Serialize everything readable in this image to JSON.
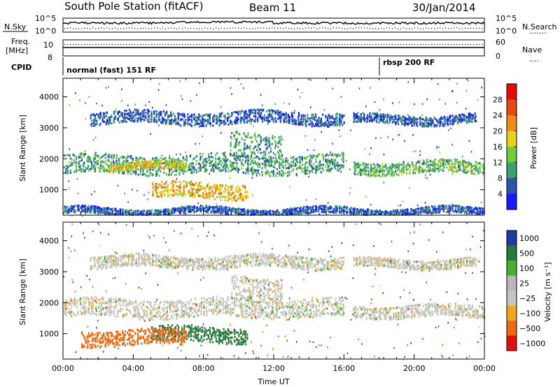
{
  "header": {
    "station": "South Pole Station (fitACF)",
    "beam": "Beam 11",
    "date": "30/Jan/2014"
  },
  "colors": {
    "power": [
      "#1a1aff",
      "#2a55a8",
      "#3aa070",
      "#6fcc3a",
      "#e5d21c",
      "#f08a18",
      "#e44a14",
      "#e60b0b"
    ],
    "velocity": [
      "#1f3aa0",
      "#28783c",
      "#48b030",
      "#b8b8b8",
      "#c8c4be",
      "#f0a820",
      "#ec6a12",
      "#e01010"
    ],
    "ground": "#c8c4be"
  },
  "top_panels": {
    "nsky": {
      "label": "N.Sky",
      "left_ticks": [
        "10^5",
        "10^0"
      ],
      "right_ticks": [
        "10^5",
        "10^0"
      ],
      "right_label": "N.Search",
      "right_marker": "......."
    },
    "freq": {
      "label_line1": "Freq.",
      "label_line2": "[MHz]",
      "left_ticks": [
        "10",
        "8"
      ],
      "right_ticks": [
        "60",
        "0"
      ],
      "right_label": "Nave",
      "right_marker": "...."
    },
    "cpid": {
      "label": "CPID",
      "modes": [
        {
          "text": "normal (fast) 151 RF",
          "start_hour": 0
        },
        {
          "text": "rbsp 200 RF",
          "start_hour": 18
        }
      ]
    }
  },
  "chart_data": [
    {
      "type": "heatmap",
      "title": "",
      "ylabel": "Slant Range [km]",
      "xlabel": "",
      "x_range_hours": [
        0,
        24
      ],
      "y_range_km": [
        180,
        4600
      ],
      "yticks": [
        "1000",
        "2000",
        "3000",
        "4000"
      ],
      "colorbar": {
        "label": "Power [dB]",
        "ticks": [
          "4",
          "8",
          "12",
          "16",
          "20",
          "24",
          "28"
        ],
        "range": [
          0,
          32
        ]
      },
      "echo_bands": [
        {
          "start_hour": 0,
          "end_hour": 16,
          "range_km": [
            1500,
            2100
          ],
          "level_db": 10
        },
        {
          "start_hour": 16.5,
          "end_hour": 24,
          "range_km": [
            1500,
            1900
          ],
          "level_db": 12
        },
        {
          "start_hour": 5,
          "end_hour": 10.5,
          "range_km": [
            700,
            1200
          ],
          "level_db": 20
        },
        {
          "start_hour": 2.5,
          "end_hour": 7,
          "range_km": [
            1600,
            1850
          ],
          "level_db": 18
        },
        {
          "start_hour": 1.5,
          "end_hour": 16,
          "range_km": [
            3100,
            3500
          ],
          "level_db": 6
        },
        {
          "start_hour": 16.5,
          "end_hour": 23.5,
          "range_km": [
            3100,
            3400
          ],
          "level_db": 6
        },
        {
          "start_hour": 9.5,
          "end_hour": 12.5,
          "range_km": [
            2000,
            2800
          ],
          "level_db": 10
        },
        {
          "start_hour": 0,
          "end_hour": 24,
          "range_km": [
            180,
            400
          ],
          "level_db": 6
        }
      ]
    },
    {
      "type": "heatmap",
      "title": "",
      "ylabel": "Slant Range [km]",
      "xlabel": "Time UT",
      "x_range_hours": [
        0,
        24
      ],
      "xticks": [
        "00:00",
        "04:00",
        "08:00",
        "12:00",
        "16:00",
        "20:00",
        "00:00"
      ],
      "y_range_km": [
        180,
        4600
      ],
      "yticks": [
        "1000",
        "2000",
        "3000",
        "4000"
      ],
      "colorbar": {
        "label": "Velocity [m s⁻¹]",
        "ticks": [
          "1000",
          "500",
          "100",
          "25",
          "−25",
          "−100",
          "−500",
          "−1000"
        ]
      },
      "echo_bands": [
        {
          "start_hour": 0,
          "end_hour": 16,
          "range_km": [
            1500,
            2100
          ],
          "velocity": 0
        },
        {
          "start_hour": 16.5,
          "end_hour": 24,
          "range_km": [
            1500,
            1900
          ],
          "velocity": 0
        },
        {
          "start_hour": 5,
          "end_hour": 10.5,
          "range_km": [
            700,
            1200
          ],
          "velocity": 150
        },
        {
          "start_hour": 1,
          "end_hour": 7,
          "range_km": [
            600,
            1100
          ],
          "velocity": -150
        },
        {
          "start_hour": 1.5,
          "end_hour": 16,
          "range_km": [
            3100,
            3500
          ],
          "velocity": 0
        },
        {
          "start_hour": 16.5,
          "end_hour": 23.5,
          "range_km": [
            3100,
            3400
          ],
          "velocity": 0
        },
        {
          "start_hour": 9.5,
          "end_hour": 12.5,
          "range_km": [
            2000,
            2800
          ],
          "velocity": 0
        }
      ]
    }
  ]
}
